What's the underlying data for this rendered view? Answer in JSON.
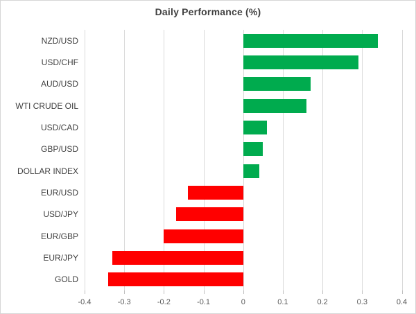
{
  "chart_data": {
    "type": "bar",
    "orientation": "horizontal",
    "title": "Daily Performance (%)",
    "categories": [
      "NZD/USD",
      "USD/CHF",
      "AUD/USD",
      "WTI CRUDE OIL",
      "USD/CAD",
      "GBP/USD",
      "DOLLAR INDEX",
      "EUR/USD",
      "USD/JPY",
      "EUR/GBP",
      "EUR/JPY",
      "GOLD"
    ],
    "values": [
      0.34,
      0.29,
      0.17,
      0.16,
      0.06,
      0.05,
      0.04,
      -0.14,
      -0.17,
      -0.2,
      -0.33,
      -0.34
    ],
    "xlim": [
      -0.4,
      0.4
    ],
    "x_ticks": [
      -0.4,
      -0.3,
      -0.2,
      -0.1,
      0,
      0.1,
      0.2,
      0.3,
      0.4
    ],
    "x_tick_labels": [
      "-0.4",
      "-0.3",
      "-0.2",
      "-0.1",
      "0",
      "0.1",
      "0.2",
      "0.3",
      "0.4"
    ],
    "grid": true,
    "legend": false,
    "colors": {
      "positive_bar": "#00AB4E",
      "negative_bar": "#FF0000",
      "gridline": "#D9D9D9",
      "tick_mark": "#BFBFBF",
      "title_text": "#404040",
      "category_text": "#404040",
      "tick_text": "#595959"
    }
  }
}
